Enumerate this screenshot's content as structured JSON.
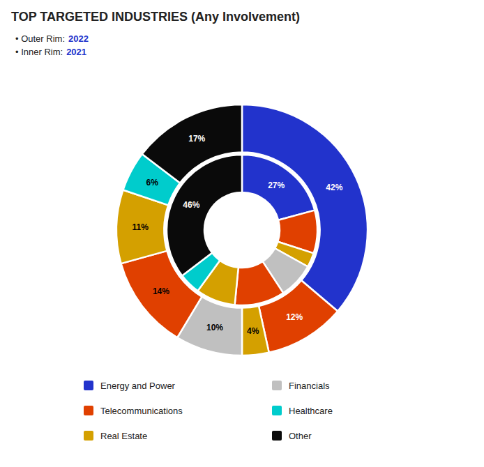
{
  "chart_data": {
    "type": "pie",
    "title": "TOP TARGETED INDUSTRIES (Any Involvement)",
    "color": "#2233CC",
    "annotations": [
      "• Outer Rim:",
      "• Inner Rim:"
    ],
    "data_labels": true,
    "series": [
      {
        "name": "2022",
        "values": [
          42,
          12,
          4,
          10,
          14,
          11,
          6,
          17
        ],
        "colors": [
          "#2233CC",
          "#E04000",
          "#D4A000",
          "#C0C0C0",
          "#E04000",
          "#D4A000",
          "#00CCCC",
          "#0A0A0A"
        ],
        "value_labels": [
          "42%",
          "12%",
          "4%",
          "10%",
          "14%",
          "11%",
          "6%",
          "17%"
        ],
        "label_colors": [
          "white",
          "white",
          "black",
          "black",
          "black",
          "black",
          "black",
          "white"
        ]
      },
      {
        "name": "2021",
        "values": [
          27,
          12,
          4,
          10,
          14,
          11,
          6,
          46
        ],
        "colors": [
          "#2233CC",
          "#E04000",
          "#D4A000",
          "#C0C0C0",
          "#E04000",
          "#D4A000",
          "#00CCCC",
          "#0A0A0A"
        ],
        "value_labels": [
          "27%",
          null,
          null,
          null,
          null,
          null,
          null,
          "46%"
        ],
        "label_colors": [
          "white",
          "white",
          "black",
          "black",
          "black",
          "black",
          "black",
          "white"
        ]
      }
    ],
    "legend_items": [
      {
        "label": "Energy and Power",
        "color": "#2233CC"
      },
      {
        "label": "Telecommunications",
        "color": "#E04000"
      },
      {
        "label": "Real Estate",
        "color": "#D4A000"
      },
      {
        "label": "Financials",
        "color": "#C0C0C0"
      },
      {
        "label": "Healthcare",
        "color": "#00CCCC"
      },
      {
        "label": "Other",
        "color": "#0A0A0A"
      }
    ]
  }
}
